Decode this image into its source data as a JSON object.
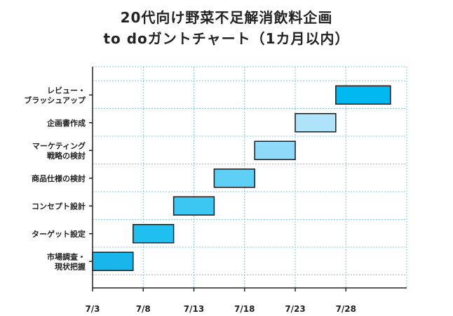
{
  "title_line1": "20代向け野菜不足解消飲料企画",
  "title_line2": "to doガントチャート（1カ月以内）",
  "chart_data": {
    "type": "gantt",
    "x_axis": {
      "ticks": [
        "7/3",
        "7/8",
        "7/13",
        "7/18",
        "7/23",
        "7/28"
      ],
      "tick_days": [
        3,
        8,
        13,
        18,
        23,
        28
      ],
      "range_days": [
        3,
        34
      ]
    },
    "grid": true,
    "tasks": [
      {
        "label": [
          "市場調査・",
          "現状把握"
        ],
        "start": 3,
        "end": 7,
        "color": "#18b6ea"
      },
      {
        "label": [
          "ターゲット設定"
        ],
        "start": 7,
        "end": 11,
        "color": "#1fbff0"
      },
      {
        "label": [
          "コンセプト設計"
        ],
        "start": 11,
        "end": 15,
        "color": "#3cc7f3"
      },
      {
        "label": [
          "商品仕様の検討"
        ],
        "start": 15,
        "end": 19,
        "color": "#5fd0f5"
      },
      {
        "label": [
          "マーケティング",
          "戦略の検討"
        ],
        "start": 19,
        "end": 23,
        "color": "#8fdaf8"
      },
      {
        "label": [
          "企画書作成"
        ],
        "start": 23,
        "end": 27,
        "color": "#aee3fa"
      },
      {
        "label": [
          "レビュー・",
          "ブラッシュアップ"
        ],
        "start": 27,
        "end": 32.4,
        "color": "#00b8f0"
      }
    ]
  }
}
